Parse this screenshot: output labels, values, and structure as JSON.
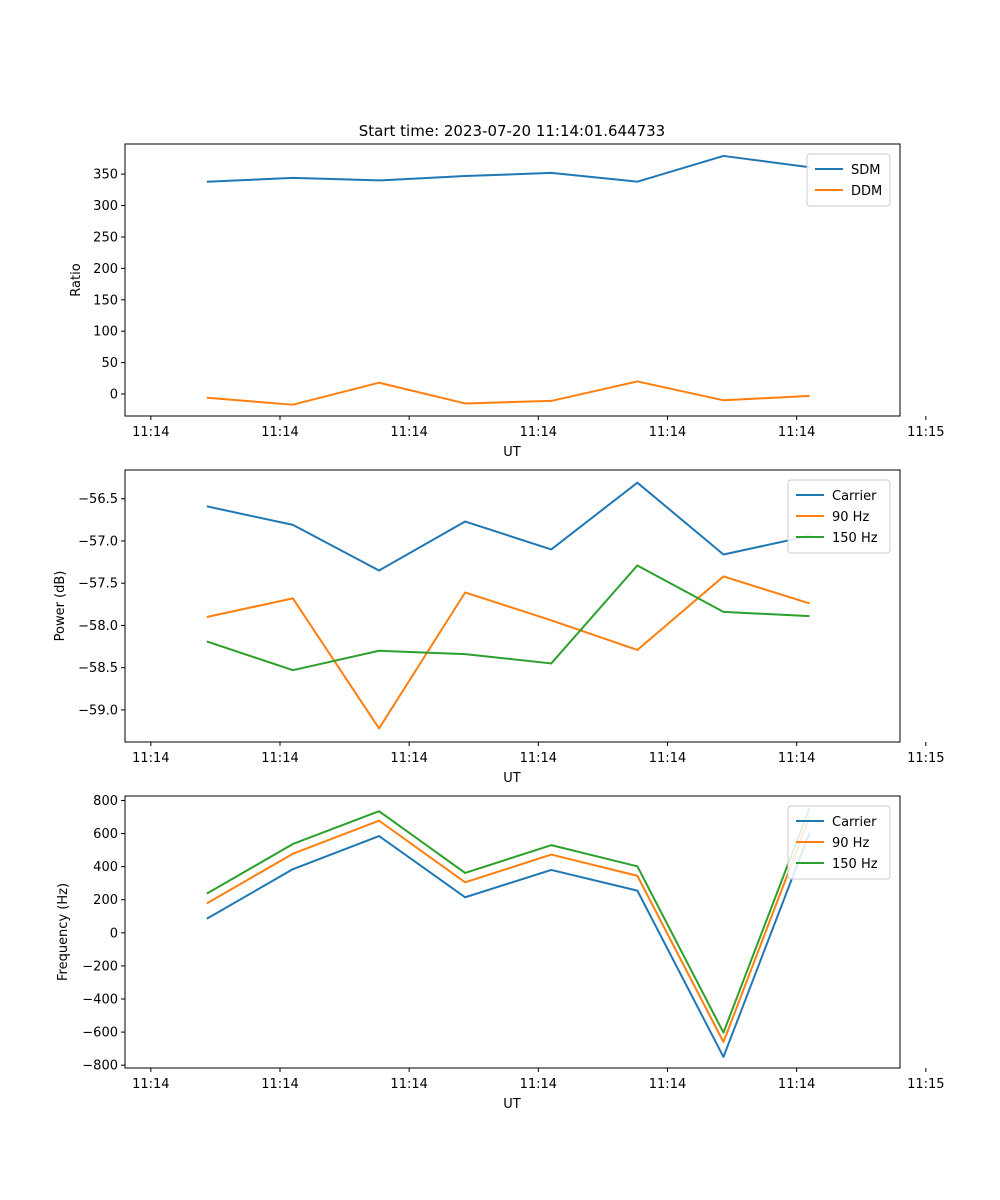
{
  "chart_data": [
    {
      "type": "line",
      "title": "Start time: 2023-07-20 11:14:01.644733",
      "xlabel": "UT",
      "ylabel": "Ratio",
      "xlim": [
        -0.3,
        8.7
      ],
      "ylim": [
        -35,
        398
      ],
      "grid": false,
      "legend_position": "top-right",
      "x": [
        0.65,
        1.65,
        2.65,
        3.65,
        4.65,
        5.65,
        6.65,
        7.65
      ],
      "x_ticks": [
        0,
        1.5,
        3,
        4.5,
        6,
        7.5,
        9
      ],
      "x_tick_labels": [
        "11:14",
        "11:14",
        "11:14",
        "11:14",
        "11:14",
        "11:14",
        "11:15"
      ],
      "y_ticks": [
        0,
        50,
        100,
        150,
        200,
        250,
        300,
        350
      ],
      "y_tick_labels": [
        "0",
        "50",
        "100",
        "150",
        "200",
        "250",
        "300",
        "350"
      ],
      "series": [
        {
          "name": "SDM",
          "color": "#1f77b4",
          "values": [
            338,
            344,
            340,
            347,
            352,
            338,
            379,
            361
          ]
        },
        {
          "name": "DDM",
          "color": "#ff7f0e",
          "values": [
            -6,
            -17,
            18,
            -15,
            -11,
            20,
            -10,
            -3
          ]
        }
      ]
    },
    {
      "type": "line",
      "title": "",
      "xlabel": "UT",
      "ylabel": "Power (dB)",
      "xlim": [
        -0.3,
        8.7
      ],
      "ylim": [
        -59.38,
        -56.16
      ],
      "grid": false,
      "legend_position": "top-right",
      "x": [
        0.65,
        1.65,
        2.65,
        3.65,
        4.65,
        5.65,
        6.65,
        7.65
      ],
      "x_ticks": [
        0,
        1.5,
        3,
        4.5,
        6,
        7.5,
        9
      ],
      "x_tick_labels": [
        "11:14",
        "11:14",
        "11:14",
        "11:14",
        "11:14",
        "11:14",
        "11:15"
      ],
      "y_ticks": [
        -59.0,
        -58.5,
        -58.0,
        -57.5,
        -57.0,
        -56.5
      ],
      "y_tick_labels": [
        "−59.0",
        "−58.5",
        "−58.0",
        "−57.5",
        "−57.0",
        "−56.5"
      ],
      "series": [
        {
          "name": "Carrier",
          "color": "#1f77b4",
          "values": [
            -56.59,
            -56.81,
            -57.35,
            -56.77,
            -57.1,
            -56.31,
            -57.16,
            -56.94
          ]
        },
        {
          "name": "90 Hz",
          "color": "#ff7f0e",
          "values": [
            -57.9,
            -57.68,
            -59.22,
            -57.61,
            -57.94,
            -58.29,
            -57.42,
            -57.74
          ]
        },
        {
          "name": "150 Hz",
          "color": "#2ca02c",
          "values": [
            -58.19,
            -58.53,
            -58.3,
            -58.34,
            -58.45,
            -57.29,
            -57.84,
            -57.89
          ]
        }
      ]
    },
    {
      "type": "line",
      "title": "",
      "xlabel": "UT",
      "ylabel": "Frequency (Hz)",
      "xlim": [
        -0.3,
        8.7
      ],
      "ylim": [
        -817,
        827
      ],
      "grid": false,
      "legend_position": "top-right",
      "x": [
        0.65,
        1.65,
        2.65,
        3.65,
        4.65,
        5.65,
        6.65,
        7.65
      ],
      "x_ticks": [
        0,
        1.5,
        3,
        4.5,
        6,
        7.5,
        9
      ],
      "x_tick_labels": [
        "11:14",
        "11:14",
        "11:14",
        "11:14",
        "11:14",
        "11:14",
        "11:15"
      ],
      "y_ticks": [
        -800,
        -600,
        -400,
        -200,
        0,
        200,
        400,
        600,
        800
      ],
      "y_tick_labels": [
        "−800",
        "−600",
        "−400",
        "−200",
        "0",
        "200",
        "400",
        "600",
        "800"
      ],
      "series": [
        {
          "name": "Carrier",
          "color": "#1f77b4",
          "values": [
            85,
            385,
            585,
            215,
            380,
            255,
            -750,
            605
          ]
        },
        {
          "name": "90 Hz",
          "color": "#ff7f0e",
          "values": [
            178,
            478,
            678,
            305,
            473,
            345,
            -660,
            700
          ]
        },
        {
          "name": "150 Hz",
          "color": "#2ca02c",
          "values": [
            237,
            537,
            735,
            362,
            530,
            402,
            -603,
            755
          ]
        }
      ]
    }
  ]
}
